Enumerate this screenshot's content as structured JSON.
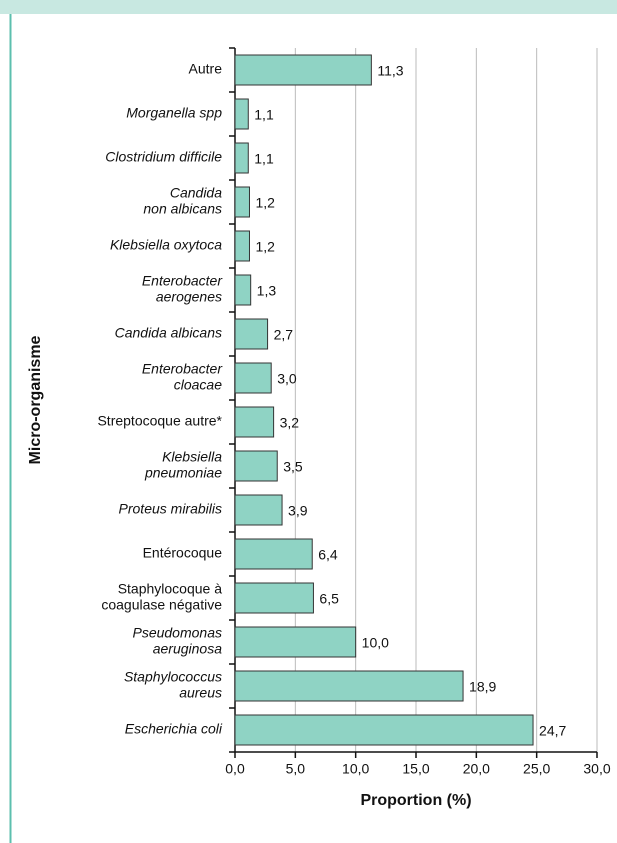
{
  "chart_data": {
    "type": "barh",
    "categories": [
      [
        "Autre"
      ],
      [
        "Morganella spp"
      ],
      [
        "Clostridium difficile"
      ],
      [
        "Candida",
        "non albicans"
      ],
      [
        "Klebsiella oxytoca"
      ],
      [
        "Enterobacter",
        "aerogenes"
      ],
      [
        "Candida albicans"
      ],
      [
        "Enterobacter",
        "cloacae"
      ],
      [
        "Streptocoque autre*"
      ],
      [
        "Klebsiella",
        "pneumoniae"
      ],
      [
        "Proteus mirabilis"
      ],
      [
        "Entérocoque"
      ],
      [
        "Staphylocoque à",
        "coagulase négative"
      ],
      [
        "Pseudomonas",
        "aeruginosa"
      ],
      [
        "Staphylococcus",
        "aureus"
      ],
      [
        "Escherichia coli"
      ]
    ],
    "italic": [
      false,
      true,
      true,
      true,
      true,
      true,
      true,
      true,
      false,
      true,
      true,
      false,
      false,
      true,
      true,
      true
    ],
    "values": [
      11.3,
      1.1,
      1.1,
      1.2,
      1.2,
      1.3,
      2.7,
      3.0,
      3.2,
      3.5,
      3.9,
      6.4,
      6.5,
      10.0,
      18.9,
      24.7
    ],
    "value_labels": [
      "11,3",
      "1,1",
      "1,1",
      "1,2",
      "1,2",
      "1,3",
      "2,7",
      "3,0",
      "3,2",
      "3,5",
      "3,9",
      "6,4",
      "6,5",
      "10,0",
      "18,9",
      "24,7"
    ],
    "color": "#8fd3c4",
    "xlabel": "Proportion (%)",
    "ylabel": "Micro-organisme",
    "xlim": [
      0,
      30
    ],
    "xticks": [
      {
        "value": 0,
        "label": "0,0"
      },
      {
        "value": 5,
        "label": "5,0"
      },
      {
        "value": 10,
        "label": "10,0"
      },
      {
        "value": 15,
        "label": "15,0"
      },
      {
        "value": 20,
        "label": "20,0"
      },
      {
        "value": 25,
        "label": "25,0"
      },
      {
        "value": 30,
        "label": "30,0"
      }
    ],
    "grid": true
  }
}
